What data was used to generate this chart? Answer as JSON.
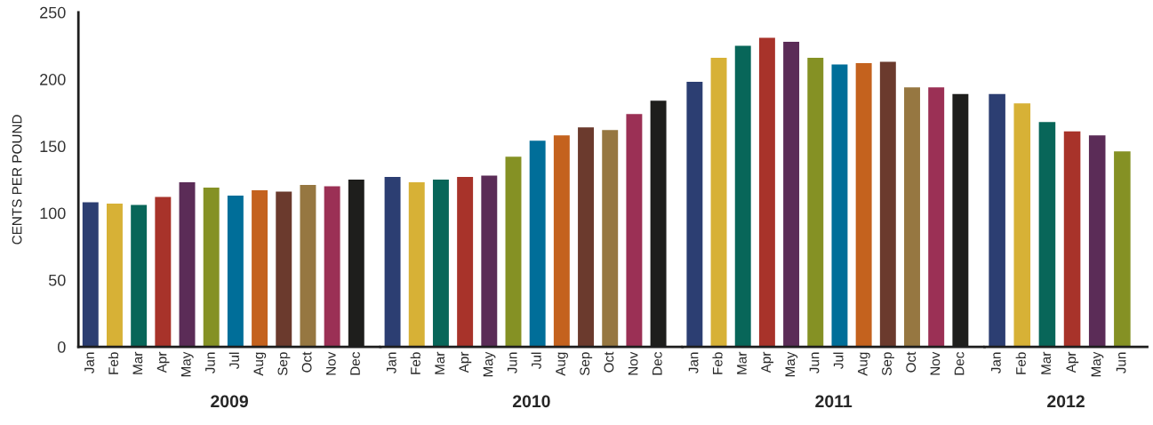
{
  "chart_data": [
    {
      "type": "bar",
      "xlabel": "2009",
      "ylabel": "CENTS PER POUND",
      "categories": [
        "Jan",
        "Feb",
        "Mar",
        "Apr",
        "May",
        "Jun",
        "Jul",
        "Aug",
        "Sep",
        "Oct",
        "Nov",
        "Dec"
      ],
      "values": [
        108,
        107,
        106,
        112,
        123,
        119,
        113,
        117,
        116,
        121,
        120,
        125
      ],
      "colors": [
        "#2c3e72",
        "#d7b136",
        "#086659",
        "#a8332a",
        "#5b2c57",
        "#859124",
        "#006e99",
        "#c4621e",
        "#6b3a2d",
        "#967741",
        "#9b3055",
        "#1e1e1c"
      ],
      "ylim": [
        0,
        250
      ],
      "yticks": [
        0,
        50,
        100,
        150,
        200,
        250
      ],
      "grid": false
    },
    {
      "type": "bar",
      "xlabel": "2010",
      "categories": [
        "Jan",
        "Feb",
        "Mar",
        "Apr",
        "May",
        "Jun",
        "Jul",
        "Aug",
        "Sep",
        "Oct",
        "Nov",
        "Dec"
      ],
      "values": [
        127,
        123,
        125,
        127,
        128,
        142,
        154,
        158,
        164,
        162,
        174,
        184
      ],
      "colors": [
        "#2c3e72",
        "#d7b136",
        "#086659",
        "#a8332a",
        "#5b2c57",
        "#859124",
        "#006e99",
        "#c4621e",
        "#6b3a2d",
        "#967741",
        "#9b3055",
        "#1e1e1c"
      ],
      "ylim": [
        0,
        250
      ],
      "tick_labels": "x",
      "grid": false
    },
    {
      "type": "bar",
      "xlabel": "2011",
      "categories": [
        "Jan",
        "Feb",
        "Mar",
        "Apr",
        "May",
        "Jun",
        "Jul",
        "Aug",
        "Sep",
        "Oct",
        "Nov",
        "Dec"
      ],
      "values": [
        198,
        216,
        225,
        231,
        228,
        216,
        211,
        212,
        213,
        194,
        194,
        189
      ],
      "colors": [
        "#2c3e72",
        "#d7b136",
        "#086659",
        "#a8332a",
        "#5b2c57",
        "#859124",
        "#006e99",
        "#c4621e",
        "#6b3a2d",
        "#967741",
        "#9b3055",
        "#1e1e1c"
      ],
      "ylim": [
        0,
        250
      ],
      "tick_labels": "x",
      "grid": false
    },
    {
      "type": "bar",
      "xlabel": "2012",
      "categories": [
        "Jan",
        "Feb",
        "Mar",
        "Apr",
        "May",
        "Jun"
      ],
      "values": [
        189,
        182,
        168,
        161,
        158,
        146
      ],
      "colors": [
        "#2c3e72",
        "#d7b136",
        "#086659",
        "#a8332a",
        "#5b2c57",
        "#859124"
      ],
      "ylim": [
        0,
        250
      ],
      "tick_labels": "x",
      "grid": false
    }
  ]
}
